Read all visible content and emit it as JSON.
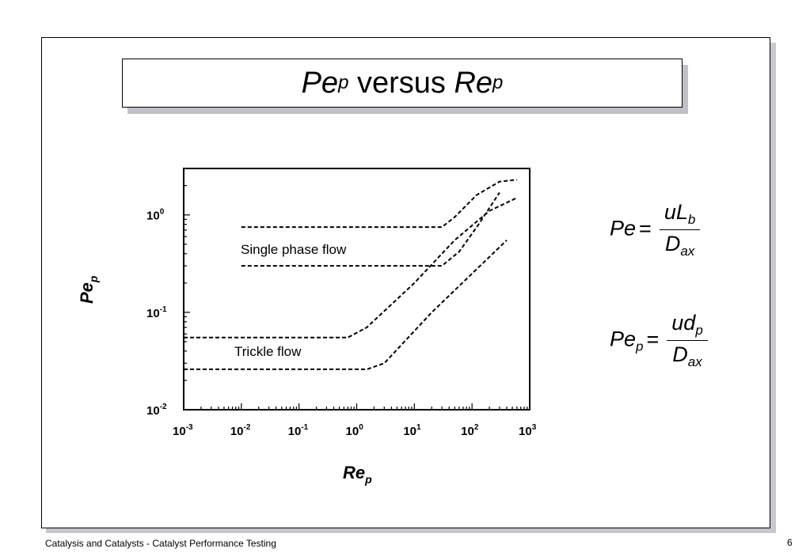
{
  "title": {
    "main": "Pe",
    "main_sub": "p",
    "middle": " versus ",
    "second": "Re",
    "second_sub": "p"
  },
  "formulas": {
    "f1": {
      "lhs": "Pe",
      "eq": "=",
      "num": "uL",
      "num_sub": "b",
      "den": "D",
      "den_sub": "ax"
    },
    "f2": {
      "lhs": "Pe",
      "lhs_sub": "p",
      "eq": "=",
      "num": "ud",
      "num_sub": "p",
      "den": "D",
      "den_sub": "ax"
    }
  },
  "footer": {
    "left": "Catalysis and Catalysts - Catalyst Performance Testing",
    "page": "6"
  },
  "chart_data": {
    "type": "line",
    "xlabel": "Re",
    "xlabel_sub": "p",
    "ylabel": "Pe",
    "ylabel_sub": "p",
    "xscale": "log",
    "yscale": "log",
    "xlim": [
      0.001,
      1000
    ],
    "ylim": [
      0.01,
      3
    ],
    "grid": false,
    "x_ticks": [
      {
        "base": "10",
        "exp": "-3"
      },
      {
        "base": "10",
        "exp": "-2"
      },
      {
        "base": "10",
        "exp": "-1"
      },
      {
        "base": "10",
        "exp": "0"
      },
      {
        "base": "10",
        "exp": "1"
      },
      {
        "base": "10",
        "exp": "2"
      },
      {
        "base": "10",
        "exp": "3"
      }
    ],
    "y_ticks": [
      {
        "base": "10",
        "exp": "-2"
      },
      {
        "base": "10",
        "exp": "-1"
      },
      {
        "base": "10",
        "exp": "0"
      }
    ],
    "annotations": [
      "Single phase flow",
      "Trickle flow"
    ],
    "series": [
      {
        "x": [
          0.01,
          30,
          50,
          120,
          300,
          600
        ],
        "y": [
          0.75,
          0.75,
          0.95,
          1.6,
          2.2,
          2.3
        ]
      },
      {
        "x": [
          0.01,
          30,
          60,
          130,
          300
        ],
        "y": [
          0.3,
          0.3,
          0.42,
          0.8,
          1.7
        ]
      },
      {
        "x": [
          0.001,
          0.7,
          1.5,
          10,
          50,
          200,
          600
        ],
        "y": [
          0.055,
          0.055,
          0.07,
          0.2,
          0.55,
          1.1,
          1.5
        ]
      },
      {
        "x": [
          0.001,
          1.5,
          3,
          20,
          100,
          400
        ],
        "y": [
          0.026,
          0.026,
          0.03,
          0.1,
          0.25,
          0.55
        ]
      }
    ]
  }
}
